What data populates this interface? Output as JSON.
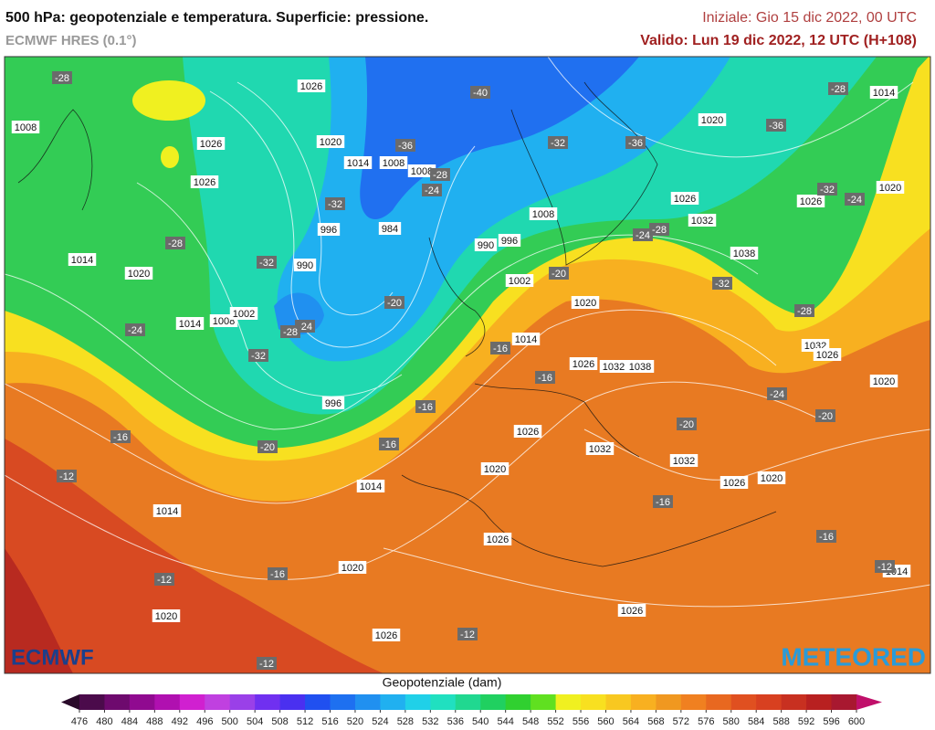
{
  "header": {
    "title": "500 hPa: geopotenziale e temperatura. Superficie: pressione.",
    "subtitle": "ECMWF HRES (0.1°)",
    "init": "Iniziale: Gio 15 dic 2022, 00 UTC",
    "valid": "Valido: Lun 19 dic 2022, 12 UTC (H+108)"
  },
  "map": {
    "pressure_labels": [
      1026,
      1008,
      1026,
      1020,
      1014,
      1008,
      1008,
      1026,
      996,
      984,
      990,
      996,
      1008,
      990,
      1014,
      1020,
      1014,
      1008,
      1002,
      996,
      1002,
      1020,
      1014,
      1026,
      1032,
      1038,
      1026,
      1032,
      1032,
      1026,
      1020,
      1020,
      1014,
      1014,
      1026,
      1020,
      1020,
      1026,
      1026,
      1020,
      1014,
      1020,
      1026,
      1032,
      1038,
      1026,
      1032,
      1026,
      1020,
      1014
    ],
    "temperature_labels": [
      -28,
      -40,
      -36,
      -28,
      -36,
      -32,
      -36,
      -28,
      -24,
      -32,
      -28,
      -32,
      -24,
      -28,
      -32,
      -24,
      -20,
      -20,
      -24,
      -28,
      -32,
      -32,
      -24,
      -28,
      -16,
      -16,
      -16,
      -24,
      -20,
      -20,
      -16,
      -20,
      -16,
      -12,
      -16,
      -16,
      -12,
      -16,
      -12,
      -12,
      -12
    ]
  },
  "logos": {
    "left": "ECMWF",
    "right": "METEORED"
  },
  "colorbar": {
    "title": "Geopotenziale (dam)",
    "ticks": [
      476,
      480,
      484,
      488,
      492,
      496,
      500,
      504,
      508,
      512,
      516,
      520,
      524,
      528,
      532,
      536,
      540,
      544,
      548,
      552,
      556,
      560,
      564,
      568,
      572,
      576,
      580,
      584,
      588,
      592,
      596,
      600
    ],
    "colors": [
      "#2a0a2a",
      "#4b0b4b",
      "#6e0a6e",
      "#900a90",
      "#b010b0",
      "#d020d0",
      "#c040e0",
      "#9a40e8",
      "#7030f0",
      "#4a30f0",
      "#2050f0",
      "#1e70f0",
      "#2090f0",
      "#20b0f0",
      "#20d0e8",
      "#20e0c0",
      "#20d890",
      "#20d060",
      "#30d030",
      "#60e020",
      "#f0f020",
      "#f8e020",
      "#f8c820",
      "#f8b020",
      "#f09820",
      "#f08020",
      "#e86820",
      "#e05020",
      "#d84020",
      "#c83020",
      "#b82020",
      "#a81830",
      "#c0106a"
    ]
  }
}
